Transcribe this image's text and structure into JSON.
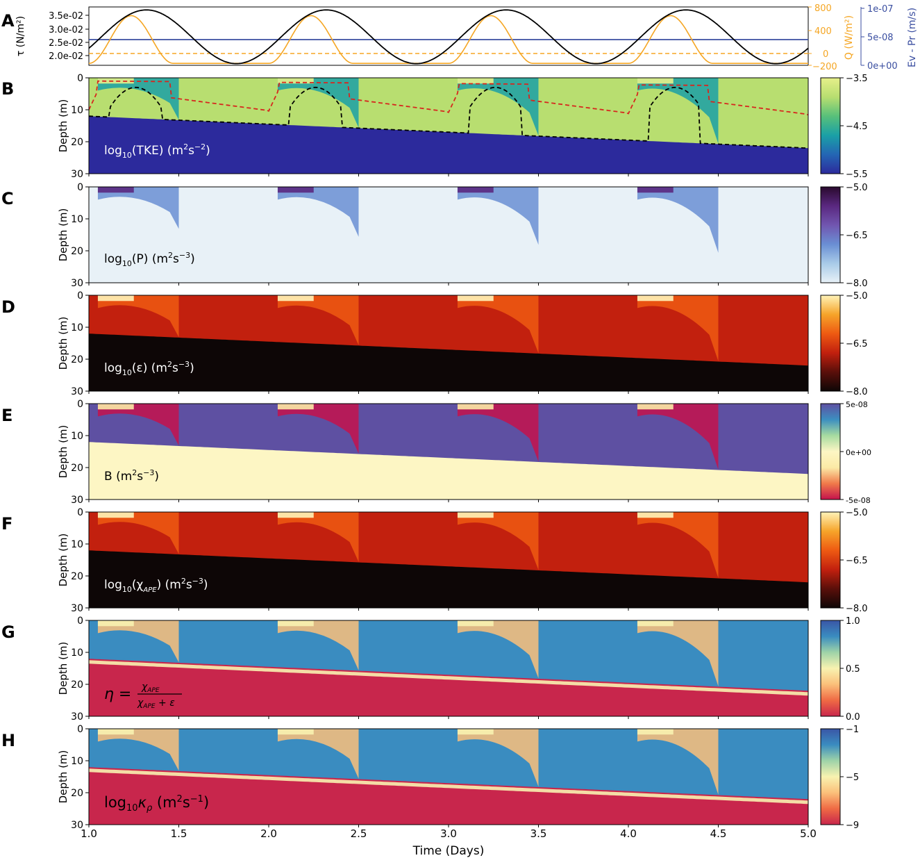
{
  "figure": {
    "xlabel": "Time (Days)",
    "xticks": [
      "1.0",
      "1.5",
      "2.0",
      "2.5",
      "3.0",
      "3.5",
      "4.0",
      "4.5",
      "5.0"
    ]
  },
  "chart_data": [
    {
      "panel": "A",
      "type": "line",
      "x_range": [
        1.0,
        5.0
      ],
      "axes": [
        {
          "side": "left",
          "label": "τ (N/m²)",
          "color": "#000000",
          "ticks": [
            "3.5e-02",
            "3.0e-02",
            "2.5e-02",
            "2.0e-02"
          ]
        },
        {
          "side": "right",
          "label": "Q (W/m²)",
          "color": "#f5a623",
          "ticks": [
            "800",
            "400",
            "0",
            "−200"
          ]
        },
        {
          "side": "right-outer",
          "label": "Ev - Pr (m/s)",
          "color": "#3a4ea0",
          "ticks": [
            "1e-07",
            "5e-08",
            "0e+00"
          ]
        }
      ],
      "series": [
        {
          "color": "#000000",
          "style": "solid",
          "desc": "sinusoid, period 1 day, peaks ~3.7e-02 near x=1.32, troughs ~1.7e-02 near x=1.82"
        },
        {
          "color": "#f5a623",
          "style": "solid",
          "desc": "daily heating pulse peaking ~650 W/m² near x=1.23, ~ -170 W/m² at night"
        },
        {
          "color": "#f5a623",
          "style": "dashed",
          "value": 0
        },
        {
          "color": "#3a4ea0",
          "style": "solid",
          "value": 5e-08
        }
      ]
    },
    {
      "panel": "B",
      "type": "heatmap",
      "ylabel": "Depth (m)",
      "yticks": [
        "0",
        "10",
        "20",
        "30"
      ],
      "annotation_main": "log",
      "annotation_sub": "10",
      "annotation_rest": "(TKE) (m",
      "annotation_u1": "2",
      "annotation_mid": "s",
      "annotation_u2": "−2",
      "annotation_end": ")",
      "colorbar": [
        "−3.5",
        "−4.5",
        "−5.5"
      ],
      "colormap": [
        "#2c2a9c",
        "#2466b4",
        "#1aa0a6",
        "#58c07a",
        "#b8de70",
        "#e6ef8a"
      ]
    },
    {
      "panel": "C",
      "type": "heatmap",
      "ylabel": "Depth (m)",
      "yticks": [
        "0",
        "10",
        "20",
        "30"
      ],
      "annotation_main": "log",
      "annotation_sub": "10",
      "annotation_rest": "(P) (m",
      "annotation_u1": "2",
      "annotation_mid": "s",
      "annotation_u2": "−3",
      "annotation_end": ")",
      "colorbar": [
        "−5.0",
        "−6.5",
        "−8.0"
      ],
      "colormap": [
        "#e8f1f7",
        "#a9cbe8",
        "#6a8fd4",
        "#7156b0",
        "#5a2880",
        "#2a0a2e"
      ]
    },
    {
      "panel": "D",
      "type": "heatmap",
      "ylabel": "Depth (m)",
      "yticks": [
        "0",
        "10",
        "20",
        "30"
      ],
      "annotation_main": "log",
      "annotation_sub": "10",
      "annotation_rest": "(ε) (m",
      "annotation_u1": "2",
      "annotation_mid": "s",
      "annotation_u2": "−3",
      "annotation_end": ")",
      "colorbar": [
        "−5.0",
        "−6.5",
        "−8.0"
      ],
      "colormap": [
        "#0d0606",
        "#5a0f0a",
        "#c2200e",
        "#ee5a12",
        "#f6a42a",
        "#fff3b8"
      ]
    },
    {
      "panel": "E",
      "type": "heatmap",
      "ylabel": "Depth (m)",
      "yticks": [
        "0",
        "10",
        "20",
        "30"
      ],
      "annotation_main": "B (m",
      "annotation_u1": "2",
      "annotation_mid": "s",
      "annotation_u2": "−3",
      "annotation_end": ")",
      "colorbar": [
        "5e-08",
        "0e+00",
        "-5e-08"
      ],
      "colormap": [
        "#c4124c",
        "#f07a4a",
        "#fbeaa6",
        "#fdf6c4",
        "#a6dba0",
        "#3c8fc0",
        "#5e50a2"
      ]
    },
    {
      "panel": "F",
      "type": "heatmap",
      "ylabel": "Depth (m)",
      "yticks": [
        "0",
        "10",
        "20",
        "30"
      ],
      "annotation_main": "log",
      "annotation_sub": "10",
      "annotation_rest": "(χ",
      "annotation_sub2": "APE",
      "annotation_tail": ") (m",
      "annotation_u1": "2",
      "annotation_mid": "s",
      "annotation_u2": "−3",
      "annotation_end": ")",
      "colorbar": [
        "−5.0",
        "−6.5",
        "−8.0"
      ],
      "colormap": [
        "#0d0606",
        "#5a0f0a",
        "#c2200e",
        "#ee5a12",
        "#f6a42a",
        "#fff3b8"
      ]
    },
    {
      "panel": "G",
      "type": "heatmap",
      "ylabel": "Depth (m)",
      "yticks": [
        "0",
        "10",
        "20",
        "30"
      ],
      "annotation_eta": "η =",
      "annotation_num": "χ",
      "annotation_num_sub": "APE",
      "annotation_den": "χ",
      "annotation_den_sub": "APE",
      "annotation_den_tail": " + ε",
      "colorbar": [
        "1.0",
        "0.5",
        "0.0"
      ],
      "colormap": [
        "#c8264c",
        "#ef6a44",
        "#fbc07a",
        "#f8f2b0",
        "#9ed3a8",
        "#3a8cc0",
        "#3a56a6"
      ]
    },
    {
      "panel": "H",
      "type": "heatmap",
      "ylabel": "Depth (m)",
      "yticks": [
        "0",
        "10",
        "20",
        "30"
      ],
      "annotation_main": "log",
      "annotation_sub": "10",
      "annotation_rest": "κ",
      "annotation_sub2": "ρ",
      "annotation_tail": " (m",
      "annotation_u1": "2",
      "annotation_mid": "s",
      "annotation_u2": "−1",
      "annotation_end": ")",
      "colorbar": [
        "−1",
        "−5",
        "−9"
      ],
      "colormap": [
        "#c8264c",
        "#ef6a44",
        "#fbc07a",
        "#f8f2b0",
        "#9ed3a8",
        "#3a8cc0",
        "#3a56a6"
      ]
    }
  ]
}
